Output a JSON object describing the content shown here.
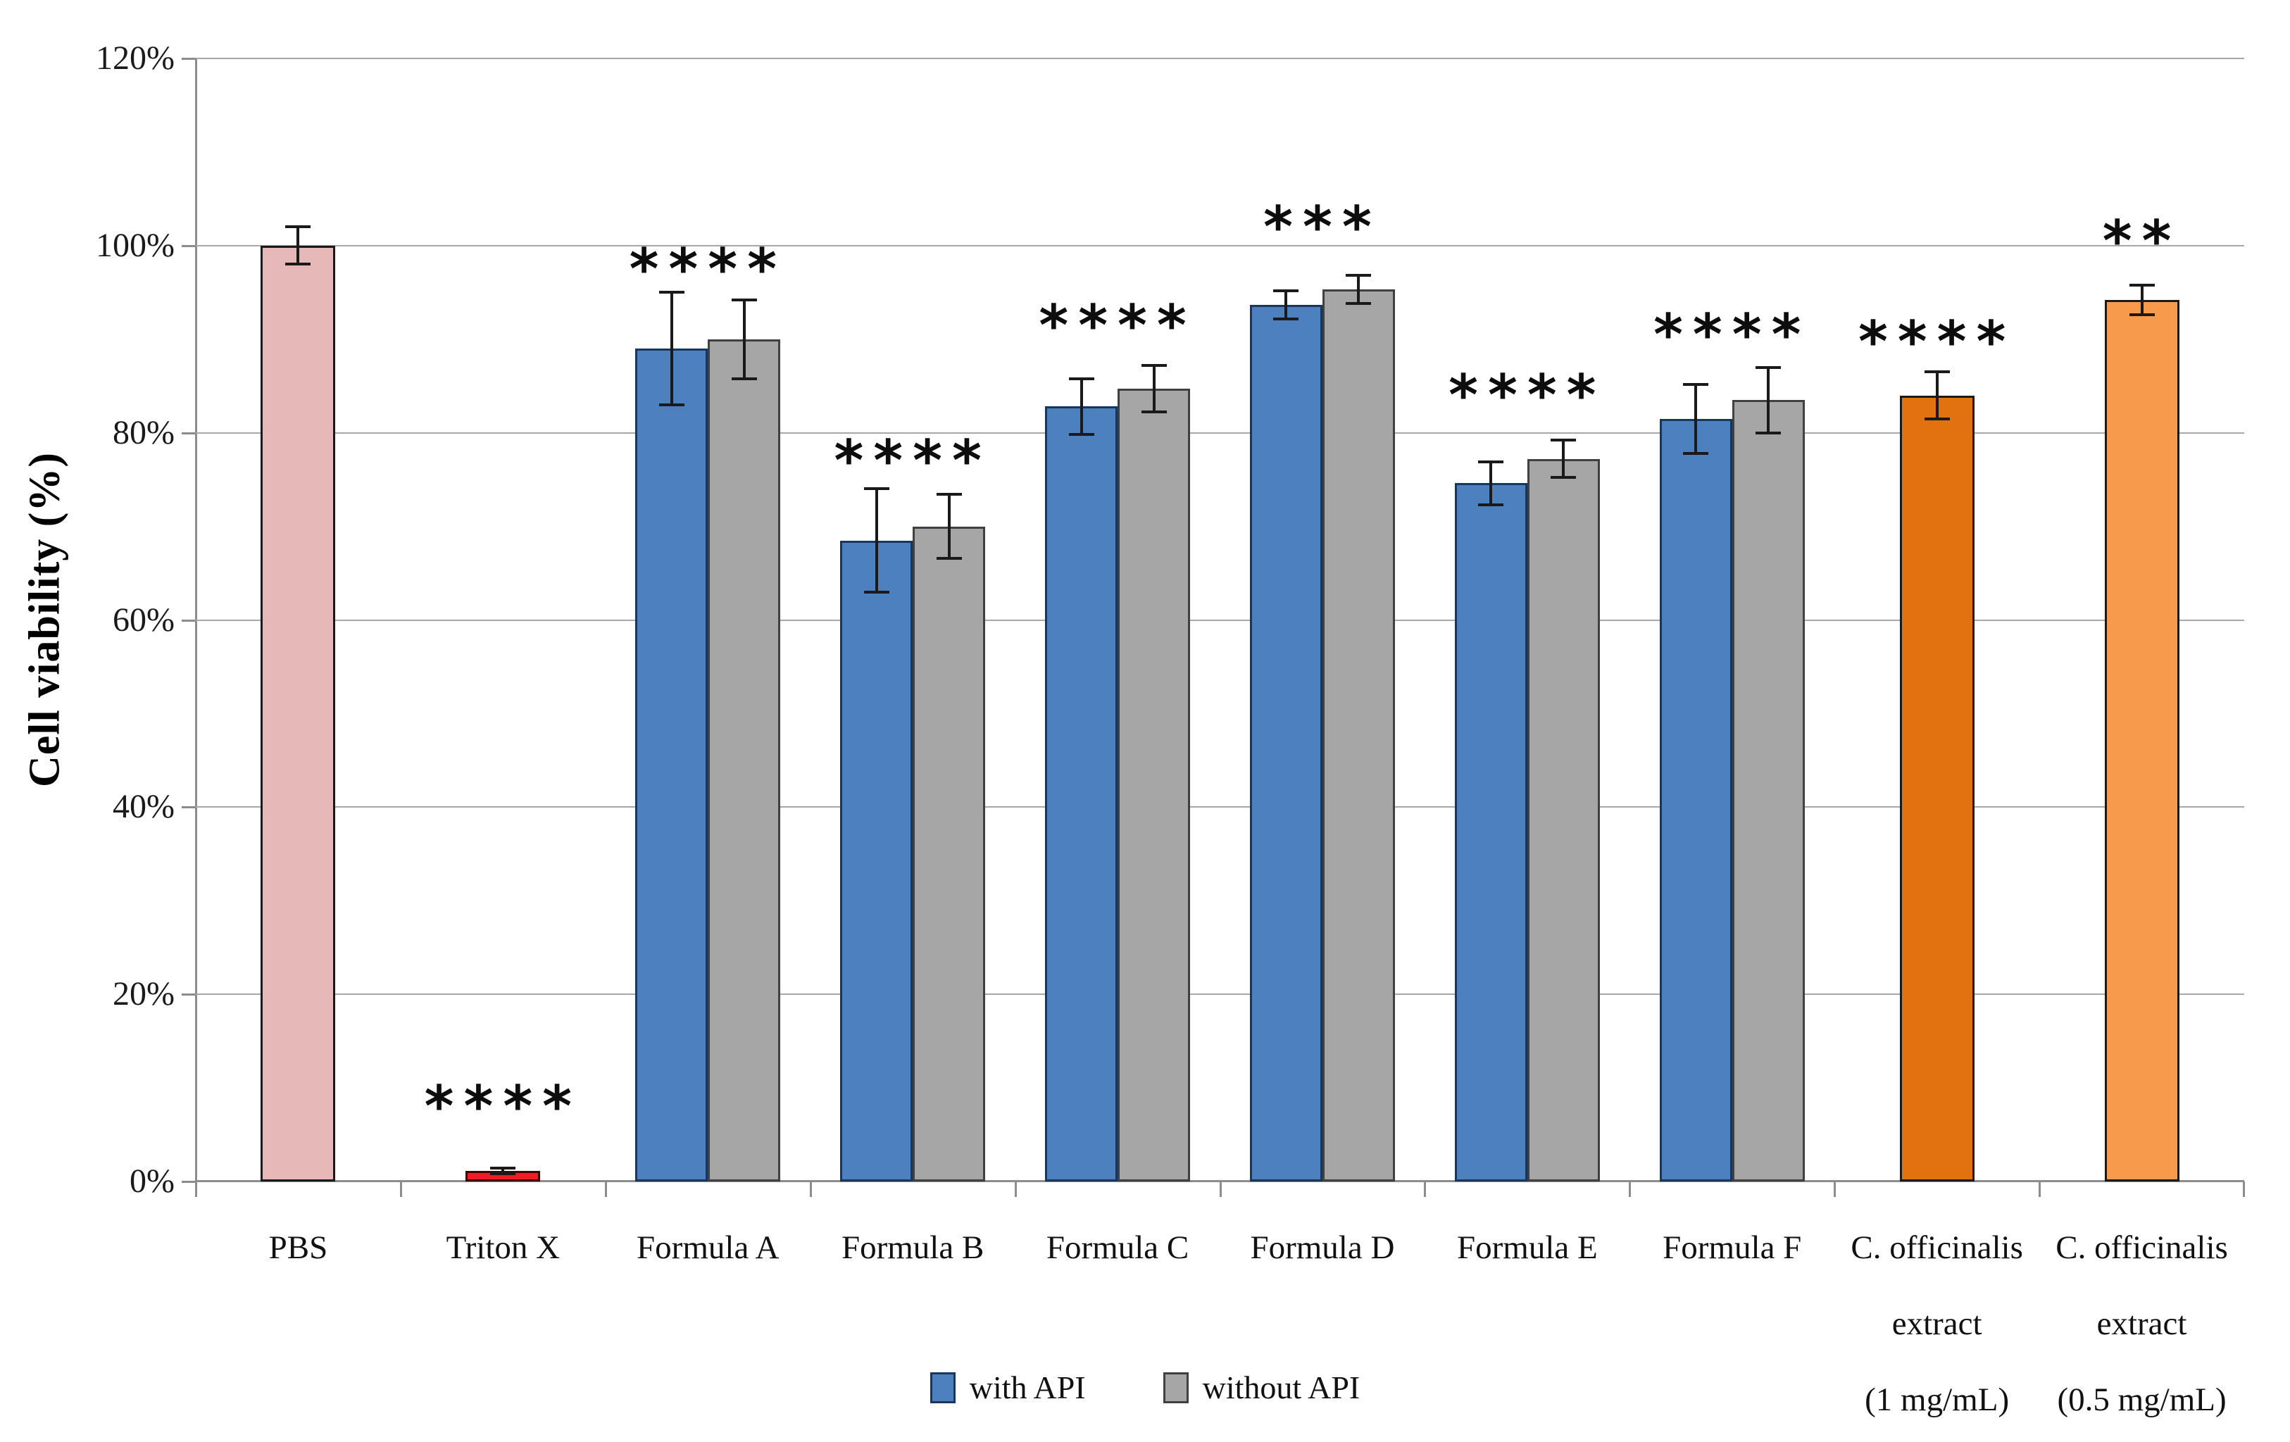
{
  "chart_data": {
    "type": "bar",
    "title": "",
    "ylabel": "Cell viability (%)",
    "xlabel": "",
    "y_ticks": [
      "0%",
      "20%",
      "40%",
      "60%",
      "80%",
      "100%",
      "120%"
    ],
    "ylim_pct": [
      0,
      120
    ],
    "grid": true,
    "legend_position": "bottom",
    "legend": [
      {
        "label": "with API",
        "color_key": "blue"
      },
      {
        "label": "without API",
        "color_key": "gray"
      }
    ],
    "colors": {
      "blue": "#4c80be",
      "blue_border": "#17375e",
      "gray": "#a6a6a6",
      "gray_border": "#404040",
      "pbs_pink": "#e6b8b7",
      "pbs_pink_border": "#1a1a1a",
      "red": "#ee1c24",
      "red_border": "#400000",
      "dark_orange": "#e2710f",
      "dark_orange_border": "#1a1a1a",
      "light_orange": "#f79a4c",
      "light_orange_border": "#1a1a1a",
      "gridline": "#a8a8a8",
      "axis": "#8c8c8c",
      "error_bar": "#1a1a1a"
    },
    "groups": [
      {
        "label_lines": [
          "PBS"
        ],
        "significance": "",
        "sig_y_pct": null,
        "bars": [
          {
            "series": "control",
            "color_key": "pbs_pink",
            "value_pct": 100,
            "err_pct": 2
          }
        ]
      },
      {
        "label_lines": [
          "Triton X"
        ],
        "significance": "****",
        "sig_y_pct": 9,
        "bars": [
          {
            "series": "control",
            "color_key": "red",
            "value_pct": 1.1,
            "err_pct": 0.3
          }
        ]
      },
      {
        "label_lines": [
          "Formula A"
        ],
        "significance": "****",
        "sig_y_pct": 98.5,
        "bars": [
          {
            "series": "with API",
            "color_key": "blue",
            "value_pct": 89,
            "err_pct": 6
          },
          {
            "series": "without API",
            "color_key": "gray",
            "value_pct": 90,
            "err_pct": 4.2
          }
        ]
      },
      {
        "label_lines": [
          "Formula B"
        ],
        "significance": "****",
        "sig_y_pct": 78,
        "bars": [
          {
            "series": "with API",
            "color_key": "blue",
            "value_pct": 68.5,
            "err_pct": 5.5
          },
          {
            "series": "without API",
            "color_key": "gray",
            "value_pct": 70,
            "err_pct": 3.4
          }
        ]
      },
      {
        "label_lines": [
          "Formula C"
        ],
        "significance": "****",
        "sig_y_pct": 92.5,
        "bars": [
          {
            "series": "with API",
            "color_key": "blue",
            "value_pct": 82.8,
            "err_pct": 3
          },
          {
            "series": "without API",
            "color_key": "gray",
            "value_pct": 84.7,
            "err_pct": 2.5
          }
        ]
      },
      {
        "label_lines": [
          "Formula D"
        ],
        "significance": "***",
        "sig_y_pct": 103,
        "bars": [
          {
            "series": "with API",
            "color_key": "blue",
            "value_pct": 93.7,
            "err_pct": 1.5
          },
          {
            "series": "without API",
            "color_key": "gray",
            "value_pct": 95.3,
            "err_pct": 1.5
          }
        ]
      },
      {
        "label_lines": [
          "Formula E"
        ],
        "significance": "****",
        "sig_y_pct": 85,
        "bars": [
          {
            "series": "with API",
            "color_key": "blue",
            "value_pct": 74.6,
            "err_pct": 2.3
          },
          {
            "series": "without API",
            "color_key": "gray",
            "value_pct": 77.2,
            "err_pct": 2
          }
        ]
      },
      {
        "label_lines": [
          "Formula F"
        ],
        "significance": "****",
        "sig_y_pct": 91.5,
        "bars": [
          {
            "series": "with API",
            "color_key": "blue",
            "value_pct": 81.5,
            "err_pct": 3.7
          },
          {
            "series": "without API",
            "color_key": "gray",
            "value_pct": 83.5,
            "err_pct": 3.5
          }
        ]
      },
      {
        "label_lines": [
          "C. officinalis",
          "extract",
          "(1 mg/mL)"
        ],
        "significance": "****",
        "sig_y_pct": 90.7,
        "bars": [
          {
            "series": "extract",
            "color_key": "dark_orange",
            "value_pct": 84,
            "err_pct": 2.5
          }
        ]
      },
      {
        "label_lines": [
          "C. officinalis",
          "extract",
          "(0.5 mg/mL)"
        ],
        "significance": "**",
        "sig_y_pct": 101.5,
        "bars": [
          {
            "series": "extract",
            "color_key": "light_orange",
            "value_pct": 94.2,
            "err_pct": 1.6
          }
        ]
      }
    ]
  }
}
